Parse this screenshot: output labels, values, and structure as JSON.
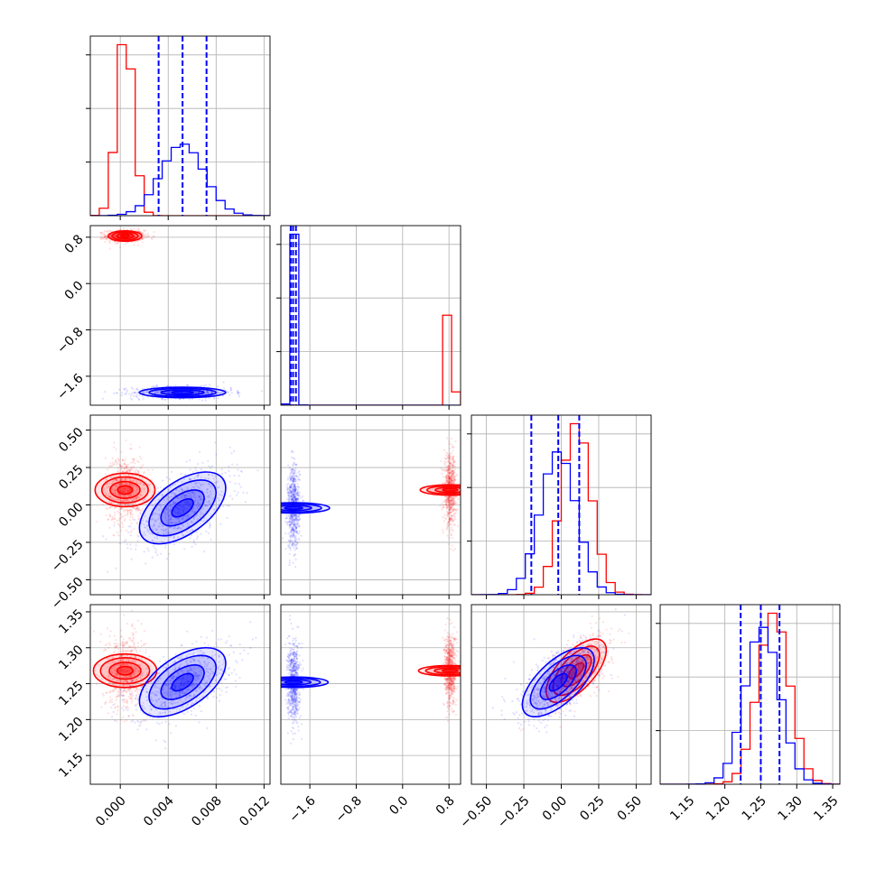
{
  "chart_data": {
    "type": "corner",
    "grid": true,
    "parameters": [
      {
        "index": 0,
        "range": [
          -0.0025,
          0.0125
        ],
        "ticks": [
          0.0,
          0.004,
          0.008,
          0.012
        ],
        "tick_labels": [
          "0.000",
          "0.004",
          "0.008",
          "0.012"
        ]
      },
      {
        "index": 1,
        "range": [
          -2.1,
          1.0
        ],
        "ticks": [
          -1.6,
          -0.8,
          0.0,
          0.8
        ],
        "tick_labels": [
          "−1.6",
          "−0.8",
          "0.0",
          "0.8"
        ]
      },
      {
        "index": 2,
        "range": [
          -0.6,
          0.6
        ],
        "ticks": [
          -0.5,
          -0.25,
          0.0,
          0.25,
          0.5
        ],
        "tick_labels": [
          "−0.50",
          "−0.25",
          "0.00",
          "0.25",
          "0.50"
        ]
      },
      {
        "index": 3,
        "range": [
          1.11,
          1.36
        ],
        "ticks": [
          1.15,
          1.2,
          1.25,
          1.3,
          1.35
        ],
        "tick_labels": [
          "1.15",
          "1.20",
          "1.25",
          "1.30",
          "1.35"
        ]
      }
    ],
    "series": [
      {
        "color": "#ff0000",
        "means": [
          0.0004,
          0.82,
          0.1,
          1.268
        ],
        "sigmas": [
          0.0007,
          0.045,
          0.1,
          0.022
        ],
        "correlations": {
          "0-1": 0.0,
          "0-2": 0.0,
          "0-3": 0.0,
          "1-2": 0.0,
          "1-3": 0.0,
          "2-3": 0.65
        }
      },
      {
        "color": "#0000ff",
        "means": [
          0.0052,
          -1.88,
          -0.02,
          1.252
        ],
        "sigmas": [
          0.0018,
          0.045,
          0.12,
          0.024
        ],
        "correlations": {
          "0-1": 0.0,
          "0-2": 0.55,
          "0-3": 0.55,
          "1-2": 0.0,
          "1-3": 0.0,
          "2-3": 0.65
        }
      }
    ],
    "quantile_lines": {
      "color": "#0000ff",
      "style": "dashed",
      "values": [
        [
          0.0032,
          0.0052,
          0.0072
        ],
        [
          -1.93,
          -1.89,
          -1.84
        ],
        [
          -0.2,
          -0.02,
          0.12
        ],
        [
          1.222,
          1.25,
          1.276
        ]
      ]
    }
  }
}
